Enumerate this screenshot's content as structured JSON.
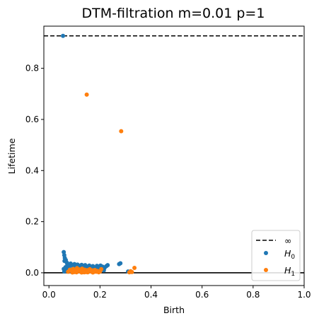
{
  "chart_data": {
    "type": "scatter",
    "title": "DTM-filtration m=0.01 p=1",
    "xlabel": "Birth",
    "ylabel": "Lifetime",
    "xlim": [
      -0.02,
      1.0
    ],
    "ylim": [
      -0.05,
      0.965
    ],
    "xticks": [
      "0.0",
      "0.2",
      "0.4",
      "0.6",
      "0.8",
      "1.0"
    ],
    "yticks": [
      "0.0",
      "0.2",
      "0.4",
      "0.6",
      "0.8"
    ],
    "infinity_line": {
      "label": "∞",
      "y": 0.927,
      "color": "#000000",
      "style": "dashed"
    },
    "zero_line": {
      "y": 0.0,
      "color": "#000000"
    },
    "legend_position": "lower-right",
    "series": [
      {
        "name": "H0",
        "legend_base": "H",
        "legend_sub": "0",
        "color": "#1f77b4",
        "points": [
          [
            0.055,
            0.927
          ],
          [
            0.058,
            0.081
          ],
          [
            0.06,
            0.069
          ],
          [
            0.062,
            0.058
          ],
          [
            0.061,
            0.046
          ],
          [
            0.066,
            0.05
          ],
          [
            0.07,
            0.04
          ],
          [
            0.072,
            0.033
          ],
          [
            0.078,
            0.028
          ],
          [
            0.085,
            0.036
          ],
          [
            0.09,
            0.03
          ],
          [
            0.095,
            0.025
          ],
          [
            0.1,
            0.034
          ],
          [
            0.105,
            0.029
          ],
          [
            0.112,
            0.032
          ],
          [
            0.12,
            0.027
          ],
          [
            0.128,
            0.031
          ],
          [
            0.135,
            0.026
          ],
          [
            0.142,
            0.03
          ],
          [
            0.15,
            0.024
          ],
          [
            0.158,
            0.028
          ],
          [
            0.165,
            0.022
          ],
          [
            0.172,
            0.026
          ],
          [
            0.18,
            0.021
          ],
          [
            0.188,
            0.027
          ],
          [
            0.195,
            0.023
          ],
          [
            0.202,
            0.028
          ],
          [
            0.21,
            0.024
          ],
          [
            0.218,
            0.019
          ],
          [
            0.225,
            0.026
          ],
          [
            0.23,
            0.03
          ],
          [
            0.185,
            0.015
          ],
          [
            0.16,
            0.014
          ],
          [
            0.14,
            0.018
          ],
          [
            0.12,
            0.016
          ],
          [
            0.1,
            0.02
          ],
          [
            0.08,
            0.017
          ],
          [
            0.065,
            0.022
          ],
          [
            0.058,
            0.015
          ],
          [
            0.07,
            0.012
          ],
          [
            0.09,
            0.01
          ],
          [
            0.11,
            0.012
          ],
          [
            0.13,
            0.01
          ],
          [
            0.15,
            0.011
          ],
          [
            0.17,
            0.009
          ],
          [
            0.2,
            0.012
          ],
          [
            0.215,
            0.009
          ],
          [
            0.19,
            0.006
          ],
          [
            0.14,
            0.006
          ],
          [
            0.085,
            0.007
          ],
          [
            0.06,
            0.005
          ],
          [
            0.275,
            0.034
          ],
          [
            0.28,
            0.037
          ],
          [
            0.31,
            0.005
          ]
        ]
      },
      {
        "name": "H1",
        "legend_base": "H",
        "legend_sub": "1",
        "color": "#ff7f0e",
        "points": [
          [
            0.148,
            0.697
          ],
          [
            0.283,
            0.554
          ],
          [
            0.335,
            0.019
          ],
          [
            0.32,
            0.006
          ],
          [
            0.315,
            0.002
          ],
          [
            0.325,
            0.003
          ],
          [
            0.075,
            0.004
          ],
          [
            0.082,
            0.012
          ],
          [
            0.088,
            0.007
          ],
          [
            0.095,
            0.015
          ],
          [
            0.1,
            0.003
          ],
          [
            0.105,
            0.01
          ],
          [
            0.11,
            0.018
          ],
          [
            0.115,
            0.006
          ],
          [
            0.12,
            0.013
          ],
          [
            0.125,
            0.004
          ],
          [
            0.13,
            0.016
          ],
          [
            0.135,
            0.008
          ],
          [
            0.14,
            0.012
          ],
          [
            0.145,
            0.003
          ],
          [
            0.15,
            0.01
          ],
          [
            0.155,
            0.006
          ],
          [
            0.16,
            0.014
          ],
          [
            0.165,
            0.005
          ],
          [
            0.17,
            0.009
          ],
          [
            0.175,
            0.003
          ],
          [
            0.18,
            0.011
          ],
          [
            0.185,
            0.004
          ],
          [
            0.19,
            0.007
          ],
          [
            0.195,
            0.002
          ],
          [
            0.2,
            0.005
          ],
          [
            0.108,
            0.002
          ],
          [
            0.128,
            0.001
          ],
          [
            0.092,
            0.001
          ],
          [
            0.152,
            0.002
          ],
          [
            0.172,
            0.001
          ],
          [
            0.205,
            0.014
          ],
          [
            0.118,
            0.009
          ],
          [
            0.138,
            0.002
          ],
          [
            0.098,
            0.009
          ]
        ]
      }
    ]
  }
}
